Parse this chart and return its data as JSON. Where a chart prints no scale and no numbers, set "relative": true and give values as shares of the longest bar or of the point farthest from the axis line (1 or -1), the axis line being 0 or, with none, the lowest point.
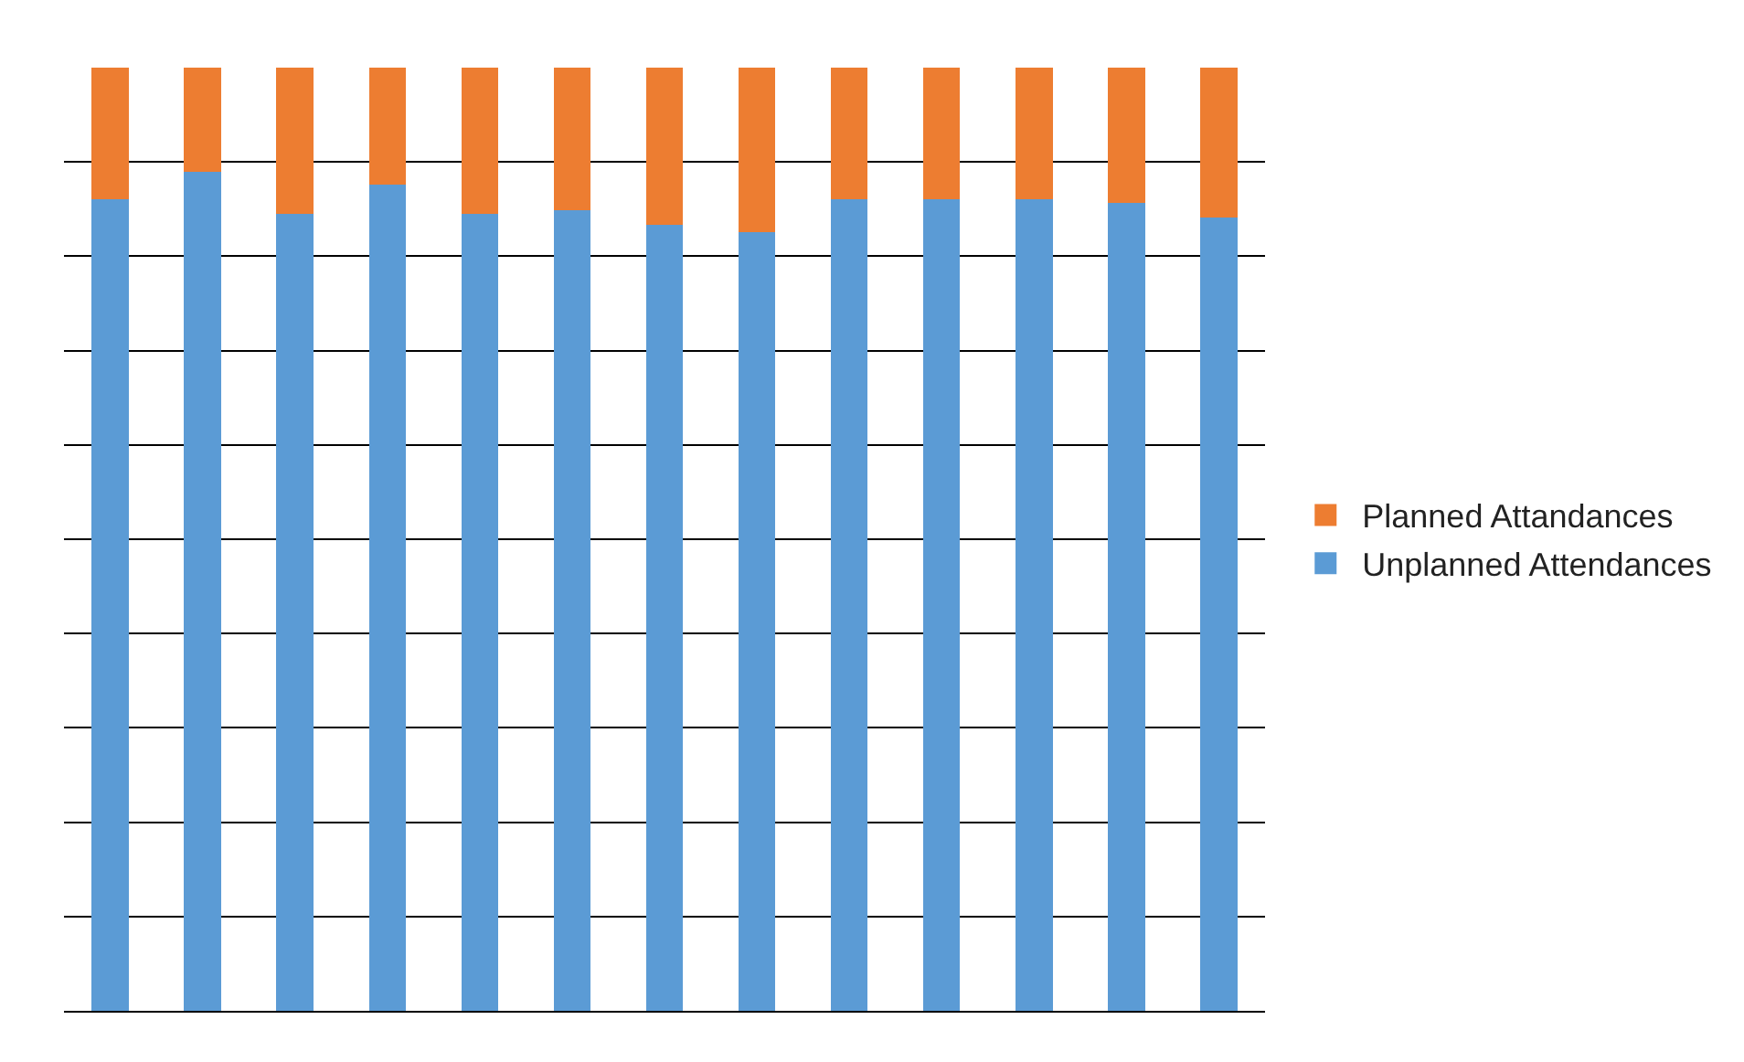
{
  "chart_data": {
    "type": "bar",
    "stacked": true,
    "relative": true,
    "categories": [
      null,
      null,
      null,
      null,
      null,
      null,
      null,
      null,
      null,
      null,
      null,
      null,
      null
    ],
    "series": [
      {
        "name": "Unplanned Attendances",
        "color": "#5b9bd5",
        "values": [
          0.86,
          0.89,
          0.845,
          0.876,
          0.845,
          0.849,
          0.833,
          0.826,
          0.86,
          0.86,
          0.86,
          0.857,
          0.841
        ]
      },
      {
        "name": "Planned Attandances",
        "color": "#ed7d31",
        "values": [
          0.14,
          0.11,
          0.155,
          0.124,
          0.155,
          0.151,
          0.167,
          0.174,
          0.14,
          0.14,
          0.14,
          0.143,
          0.159
        ]
      }
    ],
    "grid": "y",
    "legend": "right"
  }
}
